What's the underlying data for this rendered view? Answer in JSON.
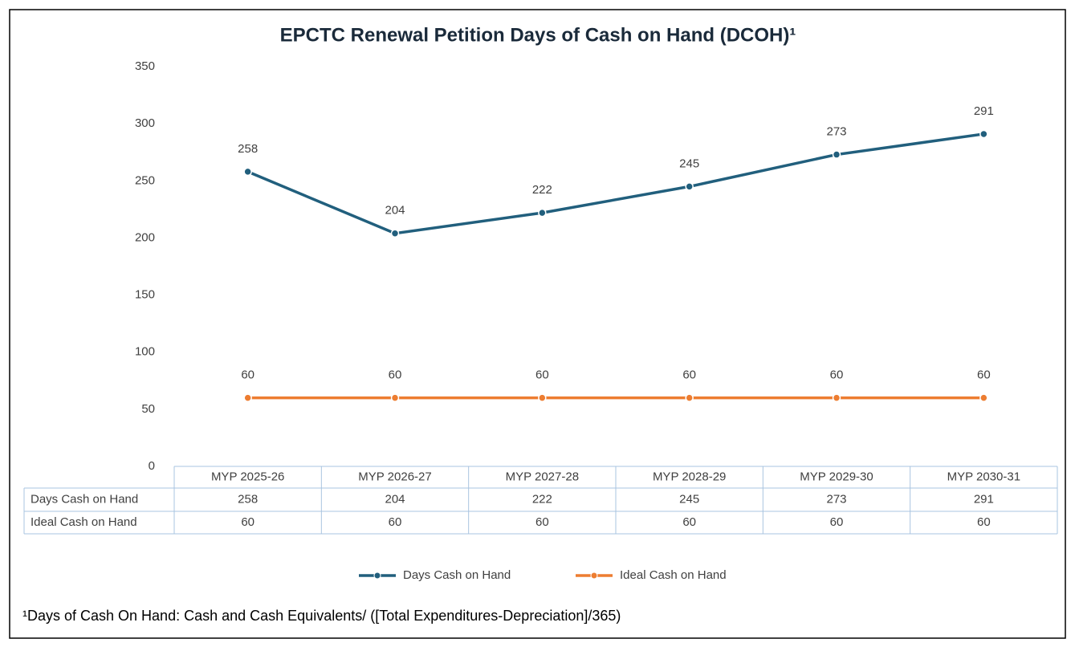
{
  "chart_data": {
    "type": "line",
    "title": "EPCTC Renewal Petition Days of Cash on Hand (DCOH)¹",
    "categories": [
      "MYP 2025-26",
      "MYP 2026-27",
      "MYP 2027-28",
      "MYP 2028-29",
      "MYP 2029-30",
      "MYP 2030-31"
    ],
    "series": [
      {
        "name": "Days Cash on Hand",
        "color": "#215f7d",
        "values": [
          258,
          204,
          222,
          245,
          273,
          291
        ]
      },
      {
        "name": "Ideal Cash on Hand",
        "color": "#ed7d31",
        "values": [
          60,
          60,
          60,
          60,
          60,
          60
        ]
      }
    ],
    "ylim": [
      0,
      350
    ],
    "yticks": [
      0,
      50,
      100,
      150,
      200,
      250,
      300,
      350
    ],
    "grid": false,
    "legend": "bottom",
    "footnote": "¹Days of Cash On Hand: Cash and  Cash Equivalents/ ([Total Expenditures-Depreciation]/365)"
  }
}
